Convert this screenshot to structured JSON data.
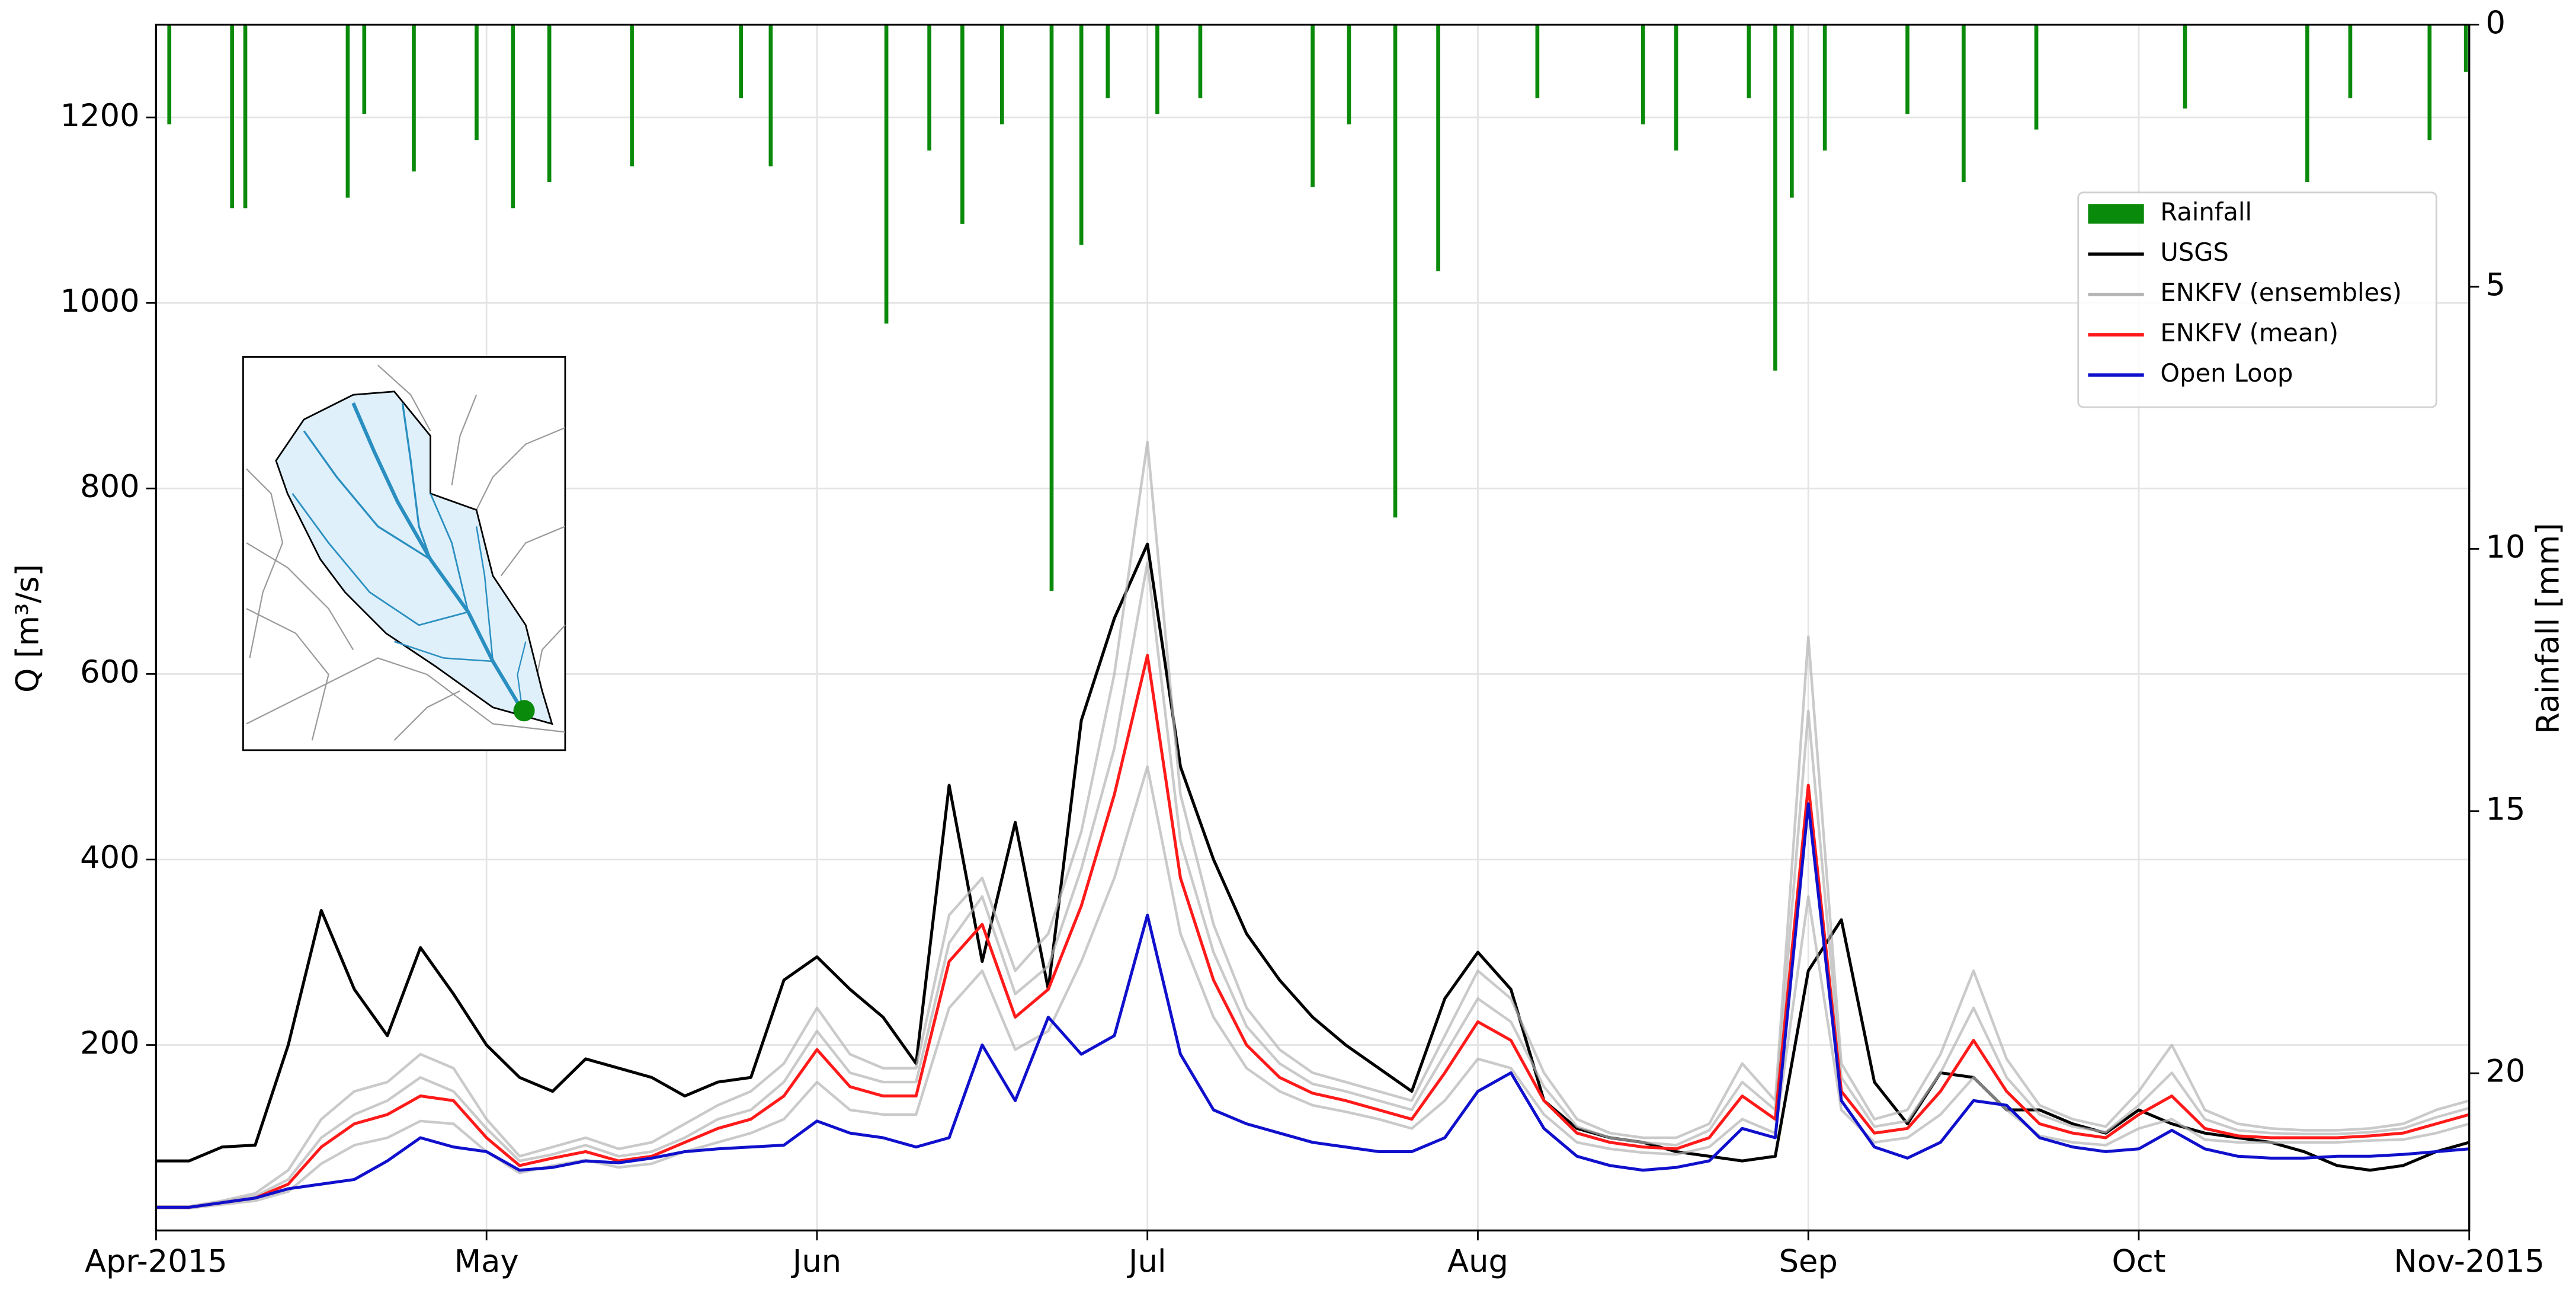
{
  "chart_data": {
    "type": "line",
    "ylabel": "Q  [m³/s]",
    "y2label": "Rainfall [mm]",
    "xlim": [
      0,
      7
    ],
    "xticks": [
      {
        "value": 0,
        "label": "Apr-2015"
      },
      {
        "value": 1,
        "label": "May"
      },
      {
        "value": 2,
        "label": "Jun"
      },
      {
        "value": 3,
        "label": "Jul"
      },
      {
        "value": 4,
        "label": "Aug"
      },
      {
        "value": 5,
        "label": "Sep"
      },
      {
        "value": 6,
        "label": "Oct"
      },
      {
        "value": 7,
        "label": "Nov-2015"
      }
    ],
    "ylim": [
      0,
      1300
    ],
    "yticks": [
      200,
      400,
      600,
      800,
      1000,
      1200
    ],
    "y2lim": [
      23,
      0
    ],
    "y2ticks": [
      0,
      5,
      10,
      15,
      20
    ],
    "grid": true,
    "legend": "upper right",
    "x": [
      0,
      0.1,
      0.2,
      0.3,
      0.4,
      0.5,
      0.6,
      0.7,
      0.8,
      0.9,
      1,
      1.1,
      1.2,
      1.3,
      1.4,
      1.5,
      1.6,
      1.7,
      1.8,
      1.9,
      2,
      2.1,
      2.2,
      2.3,
      2.4,
      2.5,
      2.6,
      2.7,
      2.8,
      2.9,
      3,
      3.1,
      3.2,
      3.3,
      3.4,
      3.5,
      3.6,
      3.7,
      3.8,
      3.9,
      4,
      4.1,
      4.2,
      4.3,
      4.4,
      4.5,
      4.6,
      4.7,
      4.8,
      4.9,
      5,
      5.1,
      5.2,
      5.3,
      5.4,
      5.5,
      5.6,
      5.7,
      5.8,
      5.9,
      6,
      6.1,
      6.2,
      6.3,
      6.4,
      6.5,
      6.6,
      6.7,
      6.8,
      6.9,
      7
    ],
    "series": [
      {
        "name": "Rainfall",
        "type": "bar",
        "axis": "y2",
        "color": "#0a8a0a",
        "x": [
          0.04,
          0.23,
          0.27,
          0.58,
          0.63,
          0.78,
          0.97,
          1.08,
          1.19,
          1.44,
          1.77,
          1.86,
          2.21,
          2.34,
          2.44,
          2.56,
          2.71,
          2.8,
          2.88,
          3.03,
          3.16,
          3.5,
          3.61,
          3.75,
          3.88,
          4.18,
          4.5,
          4.6,
          4.82,
          4.9,
          4.95,
          5.05,
          5.3,
          5.47,
          5.69,
          6.14,
          6.51,
          6.64,
          6.88,
          6.99
        ],
        "values": [
          1.9,
          3.5,
          3.5,
          3.3,
          1.7,
          2.8,
          2.2,
          3.5,
          3,
          2.7,
          1.4,
          2.7,
          5.7,
          2.4,
          3.8,
          1.9,
          10.8,
          4.2,
          1.4,
          1.7,
          1.4,
          3.1,
          1.9,
          9.4,
          4.7,
          1.4,
          1.9,
          2.4,
          1.4,
          6.6,
          3.3,
          2.4,
          1.7,
          3,
          2,
          1.6,
          3,
          1.4,
          2.2,
          0.9
        ]
      },
      {
        "name": "USGS",
        "color": "#000000",
        "values": [
          75,
          75,
          90,
          92,
          200,
          345,
          260,
          210,
          305,
          255,
          200,
          165,
          150,
          185,
          175,
          165,
          145,
          160,
          165,
          270,
          295,
          260,
          230,
          180,
          480,
          290,
          440,
          260,
          550,
          660,
          740,
          500,
          400,
          320,
          270,
          230,
          200,
          175,
          150,
          250,
          300,
          260,
          140,
          110,
          100,
          95,
          85,
          80,
          75,
          80,
          280,
          335,
          160,
          115,
          170,
          165,
          130,
          130,
          115,
          105,
          130,
          115,
          105,
          100,
          95,
          85,
          70,
          65,
          70,
          85,
          95
        ]
      },
      {
        "name": "ENKFV (ensembles)",
        "color": "#b4b4b4",
        "values": [
          [
            26,
            26,
            32,
            40,
            65,
            120,
            150,
            160,
            190,
            175,
            120,
            80,
            90,
            100,
            88,
            95,
            115,
            135,
            150,
            180,
            240,
            190,
            175,
            175,
            340,
            380,
            280,
            320,
            430,
            600,
            850,
            470,
            330,
            240,
            195,
            170,
            160,
            150,
            140,
            210,
            280,
            250,
            170,
            120,
            105,
            100,
            100,
            115,
            180,
            140,
            640,
            180,
            120,
            130,
            190,
            280,
            185,
            135,
            120,
            112,
            150,
            200,
            130,
            115,
            110,
            108,
            108,
            110,
            115,
            130,
            140
          ],
          [
            24,
            24,
            28,
            32,
            42,
            72,
            92,
            100,
            118,
            115,
            85,
            62,
            70,
            76,
            68,
            72,
            85,
            95,
            105,
            120,
            160,
            130,
            125,
            125,
            240,
            280,
            195,
            215,
            290,
            380,
            500,
            320,
            230,
            175,
            150,
            135,
            128,
            120,
            110,
            140,
            185,
            175,
            125,
            95,
            88,
            84,
            82,
            90,
            120,
            105,
            360,
            130,
            95,
            100,
            125,
            165,
            130,
            102,
            95,
            92,
            110,
            120,
            98,
            95,
            95,
            95,
            95,
            97,
            98,
            105,
            115
          ],
          [
            25,
            25,
            31,
            37,
            55,
            100,
            125,
            140,
            165,
            150,
            110,
            75,
            82,
            92,
            80,
            85,
            100,
            120,
            130,
            160,
            215,
            170,
            160,
            160,
            310,
            360,
            255,
            285,
            390,
            520,
            720,
            420,
            300,
            220,
            180,
            158,
            150,
            140,
            130,
            190,
            250,
            225,
            155,
            112,
            100,
            95,
            92,
            108,
            160,
            130,
            560,
            165,
            112,
            118,
            170,
            240,
            165,
            125,
            112,
            106,
            135,
            170,
            120,
            108,
            105,
            104,
            104,
            106,
            110,
            122,
            132
          ]
        ]
      },
      {
        "name": "ENKFV (mean)",
        "color": "#ff1a1a",
        "values": [
          25,
          25,
          30,
          35,
          50,
          90,
          115,
          125,
          145,
          140,
          100,
          70,
          78,
          85,
          75,
          80,
          95,
          110,
          120,
          145,
          195,
          155,
          145,
          145,
          290,
          330,
          230,
          260,
          350,
          470,
          620,
          380,
          270,
          200,
          165,
          148,
          140,
          130,
          120,
          170,
          225,
          205,
          140,
          105,
          95,
          90,
          88,
          100,
          145,
          120,
          480,
          150,
          105,
          110,
          150,
          205,
          150,
          115,
          105,
          100,
          125,
          145,
          110,
          102,
          100,
          100,
          100,
          102,
          105,
          115,
          125
        ]
      },
      {
        "name": "Open Loop",
        "color": "#1010cc",
        "values": [
          25,
          25,
          30,
          35,
          45,
          50,
          55,
          75,
          100,
          90,
          85,
          65,
          68,
          75,
          73,
          78,
          85,
          88,
          90,
          92,
          118,
          105,
          100,
          90,
          100,
          200,
          140,
          230,
          190,
          210,
          340,
          190,
          130,
          115,
          105,
          95,
          90,
          85,
          85,
          100,
          150,
          170,
          110,
          80,
          70,
          65,
          68,
          75,
          110,
          100,
          460,
          140,
          90,
          78,
          95,
          140,
          135,
          100,
          90,
          85,
          88,
          108,
          88,
          80,
          78,
          78,
          80,
          80,
          82,
          85,
          88
        ]
      }
    ]
  }
}
